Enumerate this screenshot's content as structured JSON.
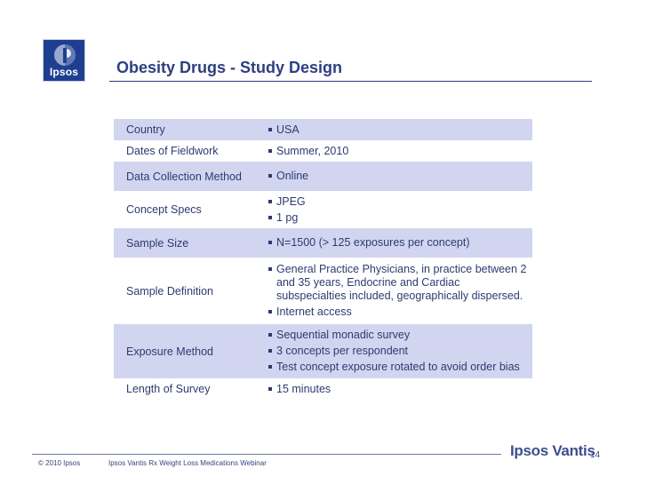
{
  "logo": {
    "text": "Ipsos"
  },
  "slide": {
    "title": "Obesity Drugs - Study Design"
  },
  "study_design": [
    {
      "label": "Country",
      "values": [
        "USA"
      ]
    },
    {
      "label": "Dates of Fieldwork",
      "values": [
        "Summer, 2010"
      ]
    },
    {
      "label": "Data Collection Method",
      "values": [
        "Online"
      ]
    },
    {
      "label": "Concept Specs",
      "values": [
        "JPEG",
        "1 pg"
      ]
    },
    {
      "label": "Sample Size",
      "values": [
        "N=1500 (> 125 exposures per concept)"
      ]
    },
    {
      "label": "Sample Definition",
      "values": [
        "General Practice Physicians, in practice between 2 and 35 years, Endocrine and Cardiac subspecialties included, geographically dispersed.",
        "Internet access"
      ]
    },
    {
      "label": "Exposure Method",
      "values": [
        "Sequential monadic survey",
        "3 concepts per respondent",
        "Test concept exposure rotated to avoid order bias"
      ]
    },
    {
      "label": "Length of Survey",
      "values": [
        "15 minutes"
      ]
    }
  ],
  "footer": {
    "copyright": "© 2010 Ipsos",
    "presentation": "Ipsos Vantis Rx Weight Loss Medications Webinar",
    "brand": "Ipsos Vantis",
    "page_number": "14"
  },
  "colors": {
    "logo_blue": "#1e3f91",
    "title_text": "#2d3f82",
    "row_shading": "#d2d5f0",
    "body_text": "#2e3b70"
  }
}
